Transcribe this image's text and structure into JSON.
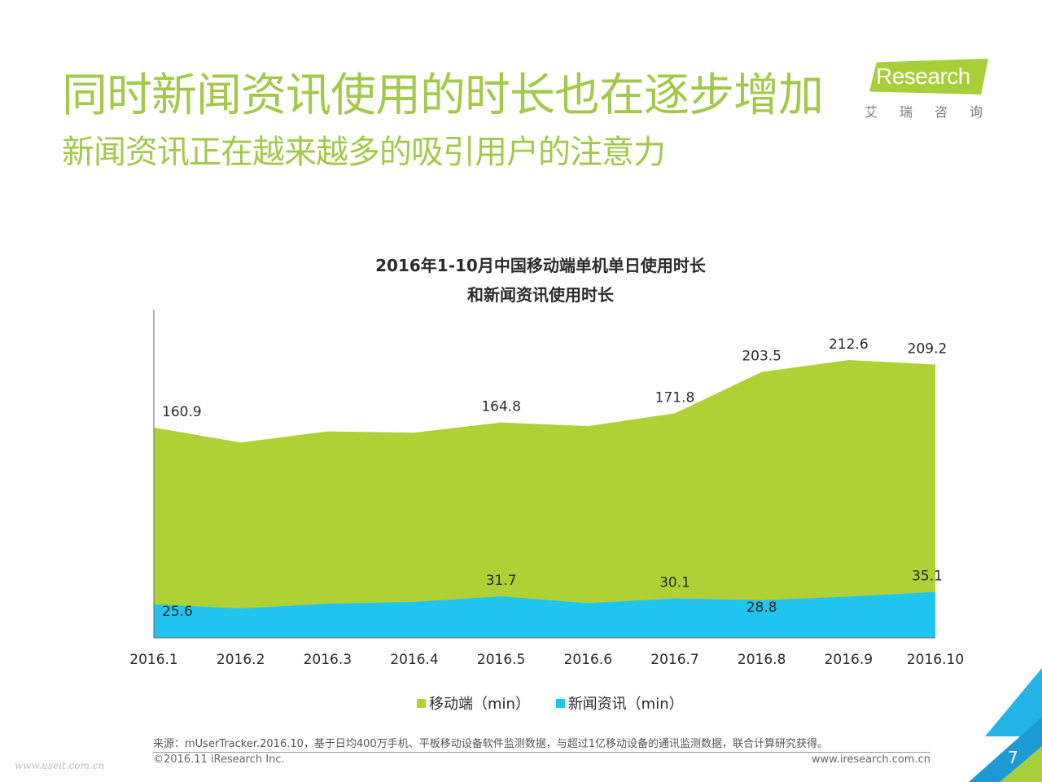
{
  "header": {
    "title": "同时新闻资讯使用的时长也在逐步增加",
    "subtitle": "新闻资讯正在越来越多的吸引用户的注意力"
  },
  "logo": {
    "mark": "i",
    "name": "Research",
    "cn": "艾瑞咨询"
  },
  "chart_data": {
    "type": "area",
    "title_line1": "2016年1-10月中国移动端单机单日使用时长",
    "title_line2": "和新闻资讯使用时长",
    "categories": [
      "2016.1",
      "2016.2",
      "2016.3",
      "2016.4",
      "2016.5",
      "2016.6",
      "2016.7",
      "2016.8",
      "2016.9",
      "2016.10"
    ],
    "series": [
      {
        "name": "移动端（min）",
        "color": "#afd136",
        "values": [
          160.9,
          149.5,
          158.0,
          157.0,
          164.8,
          162.0,
          171.8,
          203.5,
          212.6,
          209.2
        ],
        "labels": [
          "160.9",
          "",
          "",
          "",
          "164.8",
          "",
          "171.8",
          "203.5",
          "212.6",
          "209.2"
        ]
      },
      {
        "name": "新闻资讯（min）",
        "color": "#1fc4ef",
        "values": [
          25.6,
          22.5,
          26.0,
          27.5,
          31.7,
          26.5,
          30.1,
          28.8,
          31.5,
          35.1
        ],
        "labels": [
          "25.6",
          "",
          "",
          "",
          "31.7",
          "",
          "30.1",
          "28.8",
          "",
          "35.1"
        ]
      }
    ],
    "ylim": [
      0,
      250
    ],
    "grid": false,
    "legend_position": "bottom"
  },
  "footer": {
    "source": "来源：mUserTracker.2016.10，基于日均400万手机、平板移动设备软件监测数据，与超过1亿移动设备的通讯监测数据，联合计算研究获得。",
    "copyright": "©2016.11 iResearch Inc.",
    "website": "www.iresearch.com.cn",
    "watermark": "www.useit.com.cn",
    "page": "7"
  }
}
